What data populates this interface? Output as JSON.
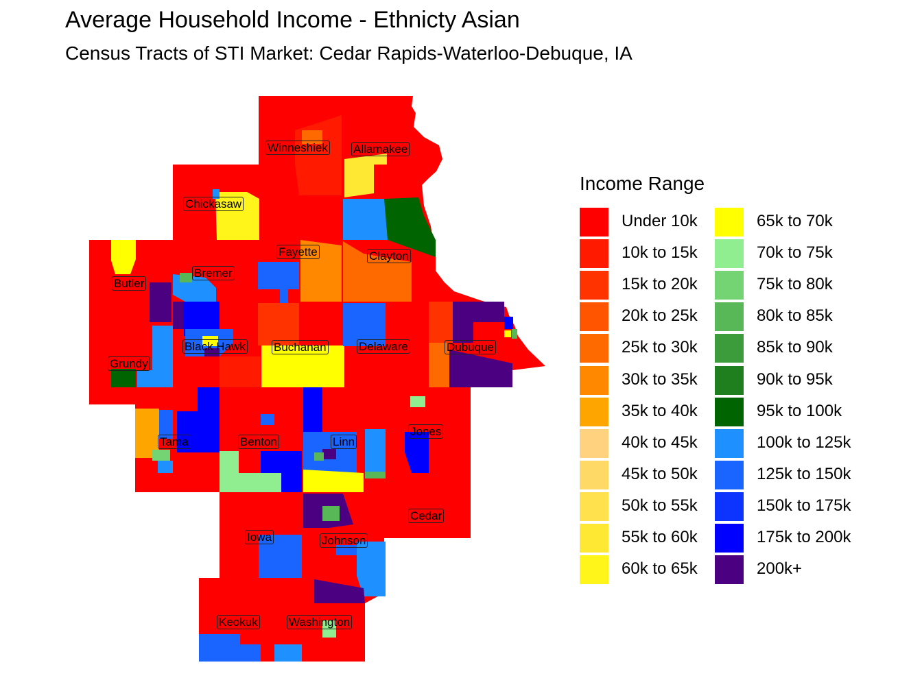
{
  "title": "Average Household Income - Ethnicty Asian",
  "subtitle": "Census Tracts of STI Market: Cedar Rapids-Waterloo-Debuque, IA",
  "legend": {
    "title": "Income Range",
    "items": [
      {
        "label": "Under 10k",
        "color": "#ff0000"
      },
      {
        "label": "10k to 15k",
        "color": "#ff1a00"
      },
      {
        "label": "15k to 20k",
        "color": "#ff3300"
      },
      {
        "label": "20k to 25k",
        "color": "#ff5500"
      },
      {
        "label": "25k to 30k",
        "color": "#ff6a00"
      },
      {
        "label": "30k to 35k",
        "color": "#ff8800"
      },
      {
        "label": "35k to 40k",
        "color": "#ffa500"
      },
      {
        "label": "40k to 45k",
        "color": "#ffd27f"
      },
      {
        "label": "45k to 50k",
        "color": "#ffd966"
      },
      {
        "label": "50k to 55k",
        "color": "#ffe14d"
      },
      {
        "label": "55k to 60k",
        "color": "#ffe833"
      },
      {
        "label": "60k to 65k",
        "color": "#fff51a"
      },
      {
        "label": "65k to 70k",
        "color": "#ffff00"
      },
      {
        "label": "70k to 75k",
        "color": "#90ee90"
      },
      {
        "label": "75k to 80k",
        "color": "#74d474"
      },
      {
        "label": "80k to 85k",
        "color": "#58b858"
      },
      {
        "label": "85k to 90k",
        "color": "#3c9c3c"
      },
      {
        "label": "90k to 95k",
        "color": "#1f7f1f"
      },
      {
        "label": "95k to 100k",
        "color": "#006400"
      },
      {
        "label": "100k to 125k",
        "color": "#1e90ff"
      },
      {
        "label": "125k to 150k",
        "color": "#1a64ff"
      },
      {
        "label": "150k to 175k",
        "color": "#0d33ff"
      },
      {
        "label": "175k to 200k",
        "color": "#0000ff"
      },
      {
        "label": "200k+",
        "color": "#4b0082"
      }
    ]
  },
  "counties": [
    {
      "name": "Winneshiek"
    },
    {
      "name": "Allamakee"
    },
    {
      "name": "Chickasaw"
    },
    {
      "name": "Fayette"
    },
    {
      "name": "Clayton"
    },
    {
      "name": "Bremer"
    },
    {
      "name": "Butler"
    },
    {
      "name": "Black Hawk"
    },
    {
      "name": "Buchanan"
    },
    {
      "name": "Delaware"
    },
    {
      "name": "Dubuque"
    },
    {
      "name": "Grundy"
    },
    {
      "name": "Tama"
    },
    {
      "name": "Benton"
    },
    {
      "name": "Linn"
    },
    {
      "name": "Jones"
    },
    {
      "name": "Cedar"
    },
    {
      "name": "Iowa"
    },
    {
      "name": "Johnson"
    },
    {
      "name": "Keokuk"
    },
    {
      "name": "Washington"
    }
  ]
}
